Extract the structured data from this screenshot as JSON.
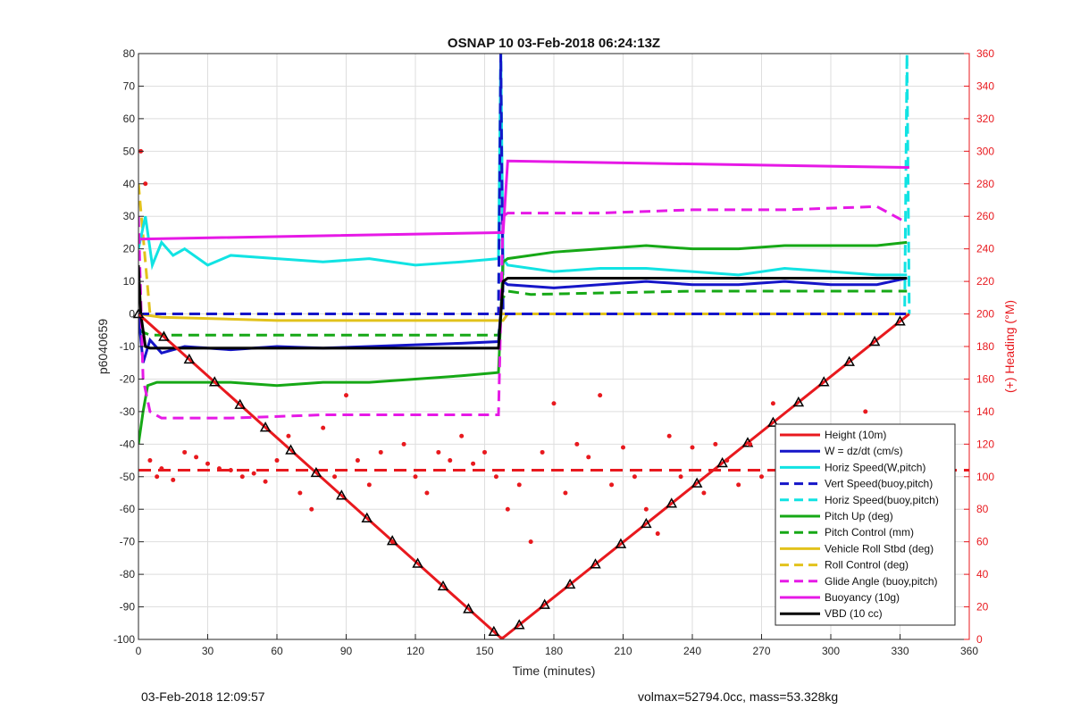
{
  "chart_data": {
    "type": "line",
    "title": "OSNAP 10 03-Feb-2018 06:24:13Z",
    "xlabel": "Time (minutes)",
    "ylabel_left": "p6040659",
    "ylabel_right": "(+) Heading (°M)",
    "xlim": [
      0,
      360
    ],
    "ylim_left": [
      -100,
      80
    ],
    "ylim_right": [
      0,
      360
    ],
    "x_ticks": [
      0,
      30,
      60,
      90,
      120,
      150,
      180,
      210,
      240,
      270,
      300,
      330,
      360
    ],
    "y_ticks_left": [
      -100,
      -90,
      -80,
      -70,
      -60,
      -50,
      -40,
      -30,
      -20,
      -10,
      0,
      10,
      20,
      30,
      40,
      50,
      60,
      70,
      80
    ],
    "y_ticks_right": [
      0,
      20,
      40,
      60,
      80,
      100,
      120,
      140,
      160,
      180,
      200,
      220,
      240,
      260,
      280,
      300,
      320,
      340,
      360
    ],
    "grid": true,
    "legend_placement": "bottom-right",
    "series": [
      {
        "name": "Height (10m)",
        "color": "#e8191e",
        "style": "solid",
        "marker": "triangle",
        "x": [
          0,
          157,
          158,
          334
        ],
        "y": [
          0,
          -99.5,
          -99.5,
          0
        ]
      },
      {
        "name": "W = dz/dt (cm/s)",
        "color": "#1515c8",
        "style": "solid",
        "x": [
          0,
          2,
          5,
          10,
          20,
          40,
          60,
          80,
          100,
          120,
          140,
          156,
          158,
          160,
          180,
          200,
          220,
          240,
          260,
          280,
          300,
          320,
          333
        ],
        "y": [
          0,
          -15,
          -8,
          -12,
          -10,
          -11,
          -10,
          -10.5,
          -10,
          -9.5,
          -9,
          -8.5,
          10,
          9,
          8,
          9,
          10,
          9,
          9,
          10,
          9,
          9,
          11
        ]
      },
      {
        "name": "Horiz Speed(W,pitch)",
        "color": "#11e3e3",
        "style": "solid",
        "x": [
          0,
          3,
          6,
          10,
          15,
          20,
          30,
          40,
          60,
          80,
          100,
          120,
          140,
          156,
          157,
          158,
          160,
          180,
          200,
          220,
          240,
          260,
          280,
          300,
          320,
          333
        ],
        "y": [
          20,
          30,
          15,
          22,
          18,
          20,
          15,
          18,
          17,
          16,
          17,
          15,
          16,
          17,
          80,
          17,
          15,
          13,
          14,
          14,
          13,
          12,
          14,
          13,
          12,
          12
        ]
      },
      {
        "name": "Vert Speed(buoy,pitch)",
        "color": "#1515c8",
        "style": "dashed",
        "x": [
          0,
          3,
          156,
          157,
          158,
          160,
          333
        ],
        "y": [
          0,
          0,
          0,
          80,
          0,
          0,
          0
        ]
      },
      {
        "name": "Horiz Speed(buoy,pitch)",
        "color": "#11e3e3",
        "style": "dashed",
        "x": [
          0,
          156,
          157,
          158,
          160,
          332,
          333,
          334
        ],
        "y": [
          0,
          0,
          80,
          0,
          0,
          0,
          80,
          0
        ]
      },
      {
        "name": "Pitch Up (deg)",
        "color": "#16a816",
        "style": "solid",
        "x": [
          0,
          2,
          4,
          8,
          20,
          40,
          60,
          80,
          100,
          120,
          140,
          156,
          158,
          160,
          180,
          200,
          220,
          240,
          260,
          280,
          300,
          320,
          333
        ],
        "y": [
          -40,
          -30,
          -22,
          -21,
          -21,
          -21,
          -22,
          -21,
          -21,
          -20,
          -19,
          -18,
          16,
          17,
          19,
          20,
          21,
          20,
          20,
          21,
          21,
          21,
          22
        ]
      },
      {
        "name": "Pitch Control (mm)",
        "color": "#16a816",
        "style": "dashed",
        "x": [
          0,
          5,
          60,
          156,
          158,
          160,
          170,
          240,
          333
        ],
        "y": [
          -5,
          -6.5,
          -6.5,
          -6.5,
          5,
          7,
          6,
          7,
          7
        ]
      },
      {
        "name": "Vehicle Roll Stbd (deg)",
        "color": "#e2c21c",
        "style": "solid",
        "x": [
          0,
          10,
          60,
          120,
          156,
          158,
          160,
          180,
          240,
          300,
          333
        ],
        "y": [
          0,
          -1,
          -2,
          -2,
          -2,
          -2,
          0,
          0,
          0,
          0,
          0
        ]
      },
      {
        "name": "Roll Control (deg)",
        "color": "#e2c21c",
        "style": "dashed",
        "x": [
          0,
          5,
          60,
          156,
          158,
          200,
          333
        ],
        "y": [
          40,
          0,
          0,
          0,
          0,
          0,
          0
        ]
      },
      {
        "name": "Glide Angle (buoy,pitch)",
        "color": "#e619e6",
        "style": "dashed",
        "x": [
          0,
          2,
          5,
          10,
          40,
          80,
          120,
          156,
          158,
          160,
          200,
          240,
          280,
          320,
          333
        ],
        "y": [
          30,
          -20,
          -30,
          -32,
          -32,
          -31,
          -31,
          -31,
          30,
          31,
          31,
          32,
          32,
          33,
          28
        ]
      },
      {
        "name": "Buoyancy (10g)",
        "color": "#e619e6",
        "style": "solid",
        "x": [
          0,
          156,
          158,
          160,
          333,
          334
        ],
        "y": [
          23,
          25,
          25,
          47,
          45,
          45
        ]
      },
      {
        "name": "VBD (10 cc)",
        "color": "#000000",
        "style": "solid",
        "x": [
          0,
          1,
          3,
          5,
          156,
          158,
          160,
          333
        ],
        "y": [
          15,
          0,
          -10,
          -10.5,
          -10.5,
          10,
          11,
          11
        ]
      }
    ],
    "heading_scatter": {
      "color": "#e8191e",
      "axis": "right",
      "x": [
        1,
        3,
        5,
        8,
        10,
        15,
        20,
        25,
        30,
        35,
        40,
        45,
        50,
        55,
        60,
        65,
        70,
        75,
        80,
        85,
        90,
        95,
        100,
        105,
        110,
        115,
        120,
        125,
        130,
        135,
        140,
        145,
        150,
        155,
        160,
        165,
        170,
        175,
        180,
        185,
        190,
        195,
        200,
        205,
        210,
        215,
        220,
        225,
        230,
        235,
        240,
        245,
        250,
        255,
        260,
        265,
        270,
        275,
        280,
        285,
        290,
        295,
        300,
        305,
        310,
        315,
        320,
        325,
        330
      ],
      "y": [
        300,
        280,
        110,
        100,
        105,
        98,
        115,
        112,
        108,
        105,
        104,
        100,
        102,
        97,
        110,
        125,
        90,
        80,
        130,
        100,
        150,
        110,
        95,
        115,
        60,
        120,
        100,
        90,
        115,
        110,
        125,
        108,
        115,
        100,
        80,
        95,
        60,
        115,
        145,
        90,
        120,
        112,
        150,
        95,
        118,
        100,
        80,
        65,
        125,
        100,
        118,
        90,
        120,
        110,
        95,
        120,
        100,
        145,
        115,
        130,
        110,
        100,
        120,
        100,
        80,
        140,
        90,
        120,
        130
      ]
    },
    "reference_line": {
      "color": "#e8191e",
      "style": "dashed",
      "axis": "right",
      "y": 104
    }
  },
  "footer": {
    "left": "03-Feb-2018 12:09:57",
    "right": "volmax=52794.0cc, mass=53.328kg"
  }
}
